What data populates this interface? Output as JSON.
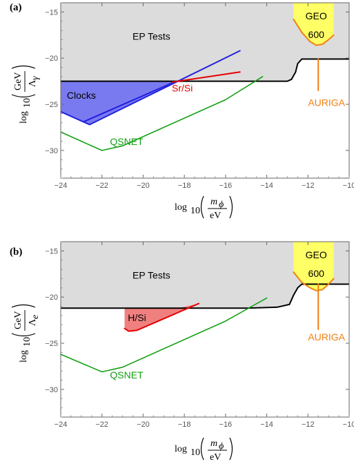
{
  "chart_data": [
    {
      "type": "line",
      "panel_label": "(a)",
      "xlabel": {
        "prefix": "log",
        "sub": "10",
        "num": "m",
        "num_sub": "ϕ",
        "den": "eV"
      },
      "ylabel": {
        "prefix": "log",
        "sub": "10",
        "num": "GeV",
        "den": "Λ",
        "den_sub": "γ"
      },
      "xlim": [
        -24,
        -10
      ],
      "ylim": [
        -33,
        -14
      ],
      "xticks": [
        -24,
        -22,
        -20,
        -18,
        -16,
        -14,
        -12,
        -10
      ],
      "yticks": [
        -30,
        -25,
        -20,
        -15
      ],
      "xtick_labels": [
        "−24",
        "−22",
        "−20",
        "−18",
        "−16",
        "−14",
        "−12",
        "−10"
      ],
      "ytick_labels": [
        "−30",
        "−25",
        "−20",
        "−15"
      ],
      "annotations": [
        {
          "text": "EP Tests",
          "color": "#000000",
          "x": -19.6,
          "y": -18.0
        },
        {
          "text": "Clocks",
          "color": "#000000",
          "x": -23.0,
          "y": -24.4
        },
        {
          "text": "Sr/Si",
          "color": "#e60000",
          "x": -18.1,
          "y": -23.6
        },
        {
          "text": "QSNET",
          "color": "#12a012",
          "x": -20.8,
          "y": -29.4
        },
        {
          "text": "GEO",
          "color": "#000000",
          "x": -11.6,
          "y": -15.8
        },
        {
          "text": "600",
          "color": "#000000",
          "x": -11.6,
          "y": -17.8
        },
        {
          "text": "AURIGA",
          "color": "#f08010",
          "x": -11.1,
          "y": -25.2
        }
      ],
      "regions": [
        {
          "name": "EP Tests",
          "fill": "#dcdcdc",
          "x": [
            -24,
            -13,
            -12.8,
            -12.6,
            -12.5,
            -12.3,
            -10
          ],
          "y": [
            -22.5,
            -22.5,
            -22.3,
            -21.5,
            -20.6,
            -20.1,
            -20.1
          ],
          "to": "top"
        },
        {
          "name": "Clocks",
          "fill": "#7a7af0",
          "x": [
            -24,
            -22.6,
            -18.4,
            -24
          ],
          "y": [
            -25.8,
            -27.2,
            -22.5,
            -22.5
          ],
          "to": "closed"
        },
        {
          "name": "GEO 600",
          "fill": "#ffff66",
          "x": [
            -12.7,
            -12.3,
            -11.9,
            -11.6,
            -11.3,
            -11.0,
            -10.75,
            -10.75,
            -12.7
          ],
          "y": [
            -15.8,
            -17.2,
            -18.2,
            -18.6,
            -18.5,
            -18.0,
            -17.5,
            -14,
            -14
          ],
          "to": "closed"
        }
      ],
      "series": [
        {
          "name": "EP Tests",
          "color": "#000000",
          "width": 2,
          "x": [
            -24,
            -13,
            -12.8,
            -12.6,
            -12.5,
            -12.3,
            -10
          ],
          "y": [
            -22.5,
            -22.5,
            -22.3,
            -21.5,
            -20.6,
            -20.1,
            -20.1
          ]
        },
        {
          "name": "Clocks",
          "color": "#2020e0",
          "width": 2,
          "x": [
            -24,
            -22.6,
            -15.3
          ],
          "y": [
            -25.8,
            -27.2,
            -19.2
          ]
        },
        {
          "name": "Clocks edge",
          "color": "#2020e0",
          "width": 2,
          "x": [
            -22.9,
            -18.4
          ],
          "y": [
            -26.9,
            -22.5
          ]
        },
        {
          "name": "Sr/Si",
          "color": "#e60000",
          "width": 2,
          "x": [
            -18.6,
            -15.3
          ],
          "y": [
            -22.6,
            -21.5
          ]
        },
        {
          "name": "QSNET",
          "color": "#12a012",
          "width": 1.6,
          "x": [
            -24,
            -22,
            -21,
            -16,
            -14.2
          ],
          "y": [
            -28,
            -30,
            -29.5,
            -24.5,
            -22
          ]
        },
        {
          "name": "GEO 600",
          "color": "#f08010",
          "width": 2,
          "x": [
            -12.7,
            -12.3,
            -11.9,
            -11.6,
            -11.3,
            -11.0,
            -10.75
          ],
          "y": [
            -15.8,
            -17.2,
            -18.2,
            -18.6,
            -18.5,
            -18.0,
            -17.5
          ]
        },
        {
          "name": "AURIGA",
          "color": "#f08010",
          "width": 2,
          "x": [
            -11.5,
            -11.5
          ],
          "y": [
            -20.1,
            -23.5
          ]
        }
      ]
    },
    {
      "type": "line",
      "panel_label": "(b)",
      "xlabel": {
        "prefix": "log",
        "sub": "10",
        "num": "m",
        "num_sub": "ϕ",
        "den": "eV"
      },
      "ylabel": {
        "prefix": "log",
        "sub": "10",
        "num": "GeV",
        "den": "Λ",
        "den_sub": "e"
      },
      "xlim": [
        -24,
        -10
      ],
      "ylim": [
        -33,
        -14
      ],
      "xticks": [
        -24,
        -22,
        -20,
        -18,
        -16,
        -14,
        -12,
        -10
      ],
      "yticks": [
        -30,
        -25,
        -20,
        -15
      ],
      "xtick_labels": [
        "−24",
        "−22",
        "−20",
        "−18",
        "−16",
        "−14",
        "−12",
        "−10"
      ],
      "ytick_labels": [
        "−30",
        "−25",
        "−20",
        "−15"
      ],
      "annotations": [
        {
          "text": "EP Tests",
          "color": "#000000",
          "x": -19.6,
          "y": -18.0
        },
        {
          "text": "H/Si",
          "color": "#000000",
          "x": -20.3,
          "y": -22.6
        },
        {
          "text": "QSNET",
          "color": "#12a012",
          "x": -20.8,
          "y": -28.8
        },
        {
          "text": "GEO",
          "color": "#000000",
          "x": -11.6,
          "y": -15.8
        },
        {
          "text": "600",
          "color": "#000000",
          "x": -11.6,
          "y": -17.8
        },
        {
          "text": "AURIGA",
          "color": "#f08010",
          "x": -11.1,
          "y": -24.7
        }
      ],
      "regions": [
        {
          "name": "EP Tests",
          "fill": "#dcdcdc",
          "x": [
            -24,
            -15.6,
            -15,
            -13.5,
            -12.9,
            -12.7,
            -12.5,
            -12.3,
            -10
          ],
          "y": [
            -21.2,
            -21.2,
            -21.2,
            -21.1,
            -20.8,
            -19.8,
            -19.0,
            -18.6,
            -18.6
          ],
          "to": "top"
        },
        {
          "name": "H/Si",
          "fill": "#f08080",
          "x": [
            -20.9,
            -20.7,
            -20.3,
            -17.3,
            -18.3,
            -20.9
          ],
          "y": [
            -23.4,
            -23.7,
            -23.6,
            -20.7,
            -21.2,
            -21.2
          ],
          "to": "closed"
        },
        {
          "name": "GEO 600",
          "fill": "#ffff66",
          "x": [
            -12.7,
            -12.3,
            -11.9,
            -11.6,
            -11.3,
            -11.0,
            -10.75,
            -10.75,
            -12.7
          ],
          "y": [
            -17.3,
            -18.4,
            -19.0,
            -19.3,
            -19.2,
            -18.6,
            -18.0,
            -14,
            -14
          ],
          "to": "closed"
        }
      ],
      "series": [
        {
          "name": "EP Tests",
          "color": "#000000",
          "width": 2,
          "x": [
            -24,
            -15.6,
            -15,
            -13.5,
            -12.9,
            -12.7,
            -12.5,
            -12.3,
            -10
          ],
          "y": [
            -21.2,
            -21.2,
            -21.2,
            -21.1,
            -20.8,
            -19.8,
            -19.0,
            -18.6,
            -18.6
          ]
        },
        {
          "name": "H/Si",
          "color": "#e60000",
          "width": 2,
          "x": [
            -20.9,
            -20.7,
            -20.3,
            -17.3
          ],
          "y": [
            -23.4,
            -23.7,
            -23.6,
            -20.7
          ]
        },
        {
          "name": "QSNET",
          "color": "#12a012",
          "width": 1.6,
          "x": [
            -24,
            -22,
            -21,
            -16,
            -14
          ],
          "y": [
            -26.2,
            -28.1,
            -27.6,
            -22.6,
            -20.1
          ]
        },
        {
          "name": "GEO 600",
          "color": "#f08010",
          "width": 2,
          "x": [
            -12.7,
            -12.3,
            -11.9,
            -11.6,
            -11.3,
            -11.0,
            -10.75
          ],
          "y": [
            -17.3,
            -18.4,
            -19.0,
            -19.3,
            -19.2,
            -18.6,
            -18.0
          ]
        },
        {
          "name": "AURIGA",
          "color": "#f08010",
          "width": 2,
          "x": [
            -11.5,
            -11.5
          ],
          "y": [
            -18.6,
            -23.5
          ]
        }
      ]
    }
  ]
}
